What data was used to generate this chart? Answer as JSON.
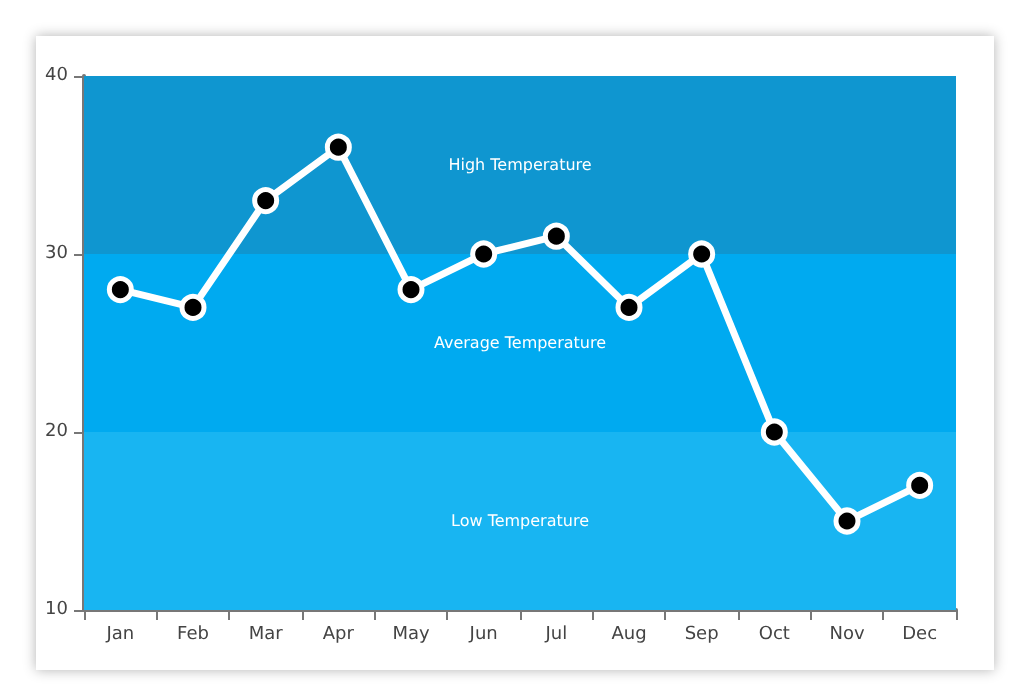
{
  "chart_data": {
    "type": "line",
    "categories": [
      "Jan",
      "Feb",
      "Mar",
      "Apr",
      "May",
      "Jun",
      "Jul",
      "Aug",
      "Sep",
      "Oct",
      "Nov",
      "Dec"
    ],
    "series": [
      {
        "color": "#ffffff",
        "values": [
          28,
          27,
          33,
          36,
          28,
          30,
          31,
          27,
          30,
          20,
          15,
          17
        ]
      }
    ],
    "ylim": [
      10,
      40
    ],
    "yticks": [
      10,
      20,
      30,
      40
    ],
    "grid": false,
    "marker": "circle",
    "line_style": "solid",
    "bands": [
      {
        "axis": "y",
        "from": 30,
        "to": 40,
        "label": "High Temperature",
        "color": "#0f96d0"
      },
      {
        "axis": "y",
        "from": 20,
        "to": 30,
        "label": "Average Temperature",
        "color": "#00aaf0"
      },
      {
        "axis": "y",
        "from": 10,
        "to": 20,
        "label": "Low Temperature",
        "color": "#18b5f2"
      }
    ]
  }
}
